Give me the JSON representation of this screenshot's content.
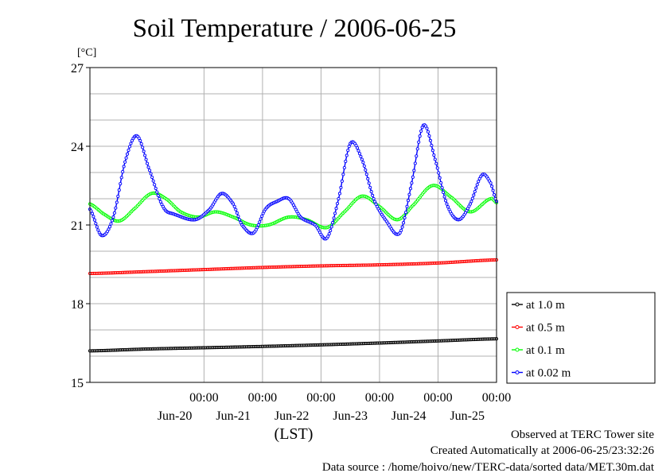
{
  "chart_data": {
    "type": "line",
    "title": "Soil Temperature / 2006-06-25",
    "ylabel": "[°C]",
    "xlabel": "(LST)",
    "ylim": [
      15,
      27
    ],
    "yticks": [
      15,
      18,
      21,
      24,
      27
    ],
    "xlim": [
      -0.95,
      6.0
    ],
    "xticks": [
      {
        "x": 1,
        "time": "00:00",
        "date": "Jun-20"
      },
      {
        "x": 2,
        "time": "00:00",
        "date": "Jun-21"
      },
      {
        "x": 3,
        "time": "00:00",
        "date": "Jun-22"
      },
      {
        "x": 4,
        "time": "00:00",
        "date": "Jun-23"
      },
      {
        "x": 5,
        "time": "00:00",
        "date": "Jun-24"
      },
      {
        "x": 6,
        "time": "00:00",
        "date": "Jun-25"
      }
    ],
    "grid": true,
    "legend_position": "right",
    "series": [
      {
        "name": "at 1.0 m",
        "color": "#000000",
        "points": [
          [
            -0.95,
            16.2
          ],
          [
            0,
            16.27
          ],
          [
            1,
            16.32
          ],
          [
            2,
            16.37
          ],
          [
            3,
            16.43
          ],
          [
            4,
            16.5
          ],
          [
            5,
            16.58
          ],
          [
            6,
            16.66
          ]
        ]
      },
      {
        "name": "at 0.5 m",
        "color": "#ff0000",
        "points": [
          [
            -0.95,
            19.15
          ],
          [
            0,
            19.22
          ],
          [
            1,
            19.3
          ],
          [
            2,
            19.38
          ],
          [
            3,
            19.44
          ],
          [
            4,
            19.48
          ],
          [
            5,
            19.55
          ],
          [
            6,
            19.67
          ]
        ]
      },
      {
        "name": "at 0.1 m",
        "color": "#00ff00",
        "points": [
          [
            -0.95,
            21.8
          ],
          [
            -0.7,
            21.4
          ],
          [
            -0.45,
            21.15
          ],
          [
            -0.2,
            21.6
          ],
          [
            0.1,
            22.2
          ],
          [
            0.35,
            22.0
          ],
          [
            0.6,
            21.5
          ],
          [
            0.9,
            21.3
          ],
          [
            1.2,
            21.5
          ],
          [
            1.5,
            21.3
          ],
          [
            1.8,
            21.0
          ],
          [
            2.1,
            21.0
          ],
          [
            2.45,
            21.3
          ],
          [
            2.75,
            21.2
          ],
          [
            3.1,
            20.9
          ],
          [
            3.4,
            21.5
          ],
          [
            3.7,
            22.1
          ],
          [
            4.0,
            21.7
          ],
          [
            4.3,
            21.2
          ],
          [
            4.55,
            21.7
          ],
          [
            4.9,
            22.5
          ],
          [
            5.2,
            22.1
          ],
          [
            5.55,
            21.5
          ],
          [
            5.9,
            22.0
          ],
          [
            6.0,
            21.85
          ]
        ]
      },
      {
        "name": "at 0.02 m",
        "color": "#0000ff",
        "points": [
          [
            -0.95,
            21.6
          ],
          [
            -0.75,
            20.6
          ],
          [
            -0.55,
            21.3
          ],
          [
            -0.35,
            23.4
          ],
          [
            -0.15,
            24.4
          ],
          [
            0.05,
            23.2
          ],
          [
            0.3,
            21.7
          ],
          [
            0.5,
            21.4
          ],
          [
            0.85,
            21.2
          ],
          [
            1.1,
            21.6
          ],
          [
            1.3,
            22.2
          ],
          [
            1.5,
            21.8
          ],
          [
            1.65,
            21.0
          ],
          [
            1.85,
            20.7
          ],
          [
            2.05,
            21.6
          ],
          [
            2.25,
            21.9
          ],
          [
            2.45,
            22.0
          ],
          [
            2.65,
            21.3
          ],
          [
            2.9,
            21.0
          ],
          [
            3.1,
            20.5
          ],
          [
            3.3,
            22.0
          ],
          [
            3.5,
            24.1
          ],
          [
            3.7,
            23.5
          ],
          [
            3.9,
            22.0
          ],
          [
            4.1,
            21.2
          ],
          [
            4.35,
            20.7
          ],
          [
            4.55,
            22.6
          ],
          [
            4.75,
            24.8
          ],
          [
            4.95,
            23.5
          ],
          [
            5.15,
            21.8
          ],
          [
            5.35,
            21.2
          ],
          [
            5.55,
            21.8
          ],
          [
            5.75,
            22.9
          ],
          [
            5.9,
            22.6
          ],
          [
            6.0,
            21.9
          ]
        ]
      }
    ]
  },
  "footer": {
    "site": "Observed at TERC Tower site",
    "created": "Created Automatically at 2006-06-25/23:32:26",
    "source": "Data source : /home/hoivo/new/TERC-data/sorted  data/MET.30m.dat"
  }
}
